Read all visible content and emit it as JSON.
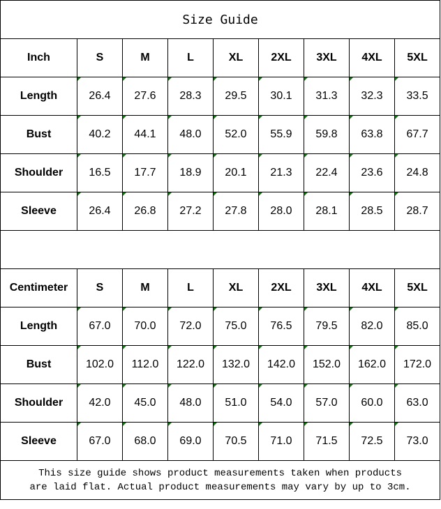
{
  "title": "Size Guide",
  "sizes": [
    "S",
    "M",
    "L",
    "XL",
    "2XL",
    "3XL",
    "4XL",
    "5XL"
  ],
  "tables": [
    {
      "unit": "Inch",
      "rows": [
        {
          "label": "Length",
          "values": [
            "26.4",
            "27.6",
            "28.3",
            "29.5",
            "30.1",
            "31.3",
            "32.3",
            "33.5"
          ]
        },
        {
          "label": "Bust",
          "values": [
            "40.2",
            "44.1",
            "48.0",
            "52.0",
            "55.9",
            "59.8",
            "63.8",
            "67.7"
          ]
        },
        {
          "label": "Shoulder",
          "values": [
            "16.5",
            "17.7",
            "18.9",
            "20.1",
            "21.3",
            "22.4",
            "23.6",
            "24.8"
          ]
        },
        {
          "label": "Sleeve",
          "values": [
            "26.4",
            "26.8",
            "27.2",
            "27.8",
            "28.0",
            "28.1",
            "28.5",
            "28.7"
          ]
        }
      ]
    },
    {
      "unit": "Centimeter",
      "rows": [
        {
          "label": "Length",
          "values": [
            "67.0",
            "70.0",
            "72.0",
            "75.0",
            "76.5",
            "79.5",
            "82.0",
            "85.0"
          ]
        },
        {
          "label": "Bust",
          "values": [
            "102.0",
            "112.0",
            "122.0",
            "132.0",
            "142.0",
            "152.0",
            "162.0",
            "172.0"
          ]
        },
        {
          "label": "Shoulder",
          "values": [
            "42.0",
            "45.0",
            "48.0",
            "51.0",
            "54.0",
            "57.0",
            "60.0",
            "63.0"
          ]
        },
        {
          "label": "Sleeve",
          "values": [
            "67.0",
            "68.0",
            "69.0",
            "70.5",
            "71.0",
            "71.5",
            "72.5",
            "73.0"
          ]
        }
      ]
    }
  ],
  "footnote_line1": "This size guide shows product measurements taken when products",
  "footnote_line2": "are laid flat. Actual product measurements may vary by up to 3cm.",
  "colors": {
    "marker": "#0a7a0a",
    "border": "#000000"
  }
}
